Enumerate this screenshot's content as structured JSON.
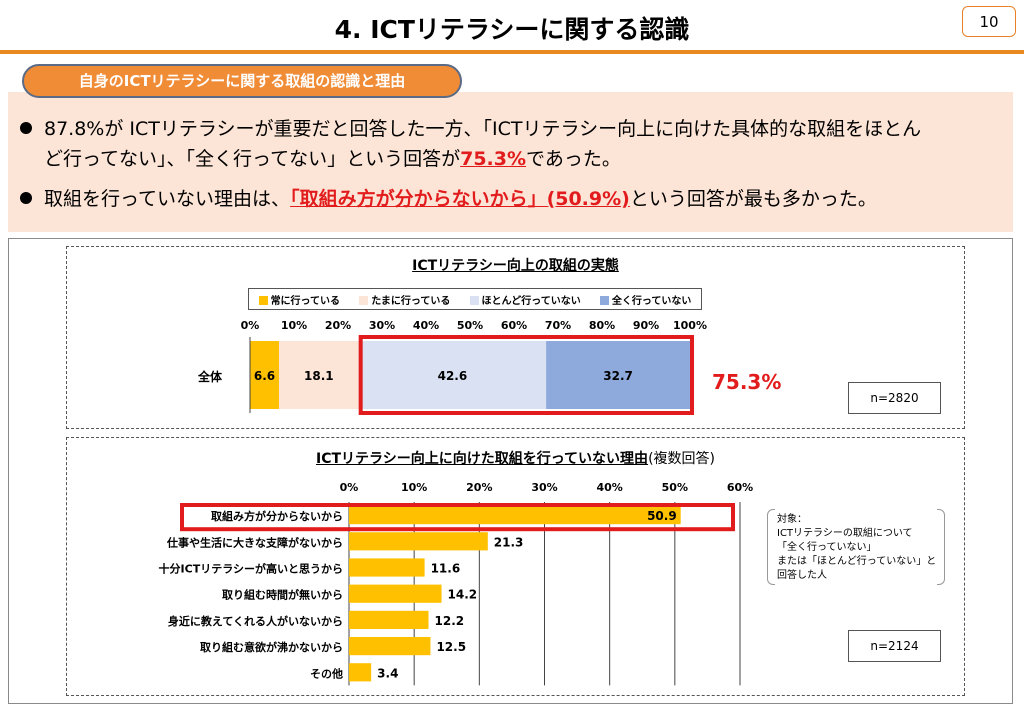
{
  "header": {
    "title": "4. ICTリテラシーに関する認識",
    "page_number": "10"
  },
  "summary": {
    "pill_label": "自身のICTリテラシーに関する取組の認識と理由",
    "bullet1_line1": "87.8%が ICTリテラシーが重要だと回答した一方、「ICTリテラシー向上に向けた具体的な取組をほとん",
    "bullet1_line2_pre": "ど行ってない」、「全く行ってない」という回答が",
    "bullet1_highlight": "75.3%",
    "bullet1_line2_post": "であった。",
    "bullet2_pre": "取組を行っていない理由は、",
    "bullet2_highlight": "「取組み方が分からないから」(50.9%)",
    "bullet2_post": "という回答が最も多かった。"
  },
  "chart_data": [
    {
      "type": "bar",
      "orientation": "horizontal-stacked",
      "title": "ICTリテラシー向上の取組の実態",
      "categories": [
        "全体"
      ],
      "series": [
        {
          "name": "常に行っている",
          "values": [
            6.6
          ],
          "color": "#ffc000"
        },
        {
          "name": "たまに行っている",
          "values": [
            18.1
          ],
          "color": "#fce4d6"
        },
        {
          "name": "ほとんど行っていない",
          "values": [
            42.6
          ],
          "color": "#d9e1f2"
        },
        {
          "name": "全く行っていない",
          "values": [
            32.7
          ],
          "color": "#8ea9db"
        }
      ],
      "xticks": [
        "0%",
        "10%",
        "20%",
        "30%",
        "40%",
        "50%",
        "60%",
        "70%",
        "80%",
        "90%",
        "100%"
      ],
      "xlim": [
        0,
        100
      ],
      "highlight_label": "75.3%",
      "n_label": "n=2820",
      "legend": "top"
    },
    {
      "type": "bar",
      "orientation": "horizontal",
      "title": "ICTリテラシー向上に向けた取組を行っていない理由",
      "title_suffix": "(複数回答)",
      "categories": [
        "取組み方が分からないから",
        "仕事や生活に大きな支障がないから",
        "十分ICTリテラシーが高いと思うから",
        "取り組む時間が無いから",
        "身近に教えてくれる人がいないから",
        "取り組む意欲が沸かないから",
        "その他"
      ],
      "values": [
        50.9,
        21.3,
        11.6,
        14.2,
        12.2,
        12.5,
        3.4
      ],
      "bar_color": "#ffc000",
      "xticks": [
        "0%",
        "10%",
        "20%",
        "30%",
        "40%",
        "50%",
        "60%"
      ],
      "xlim": [
        0,
        60
      ],
      "grid": true,
      "n_label": "n=2124",
      "note_lines": [
        "対象：",
        "ICTリテラシーの取組について",
        "「全く行っていない」",
        "または「ほとんど行っていない」と",
        "回答した人"
      ]
    }
  ]
}
